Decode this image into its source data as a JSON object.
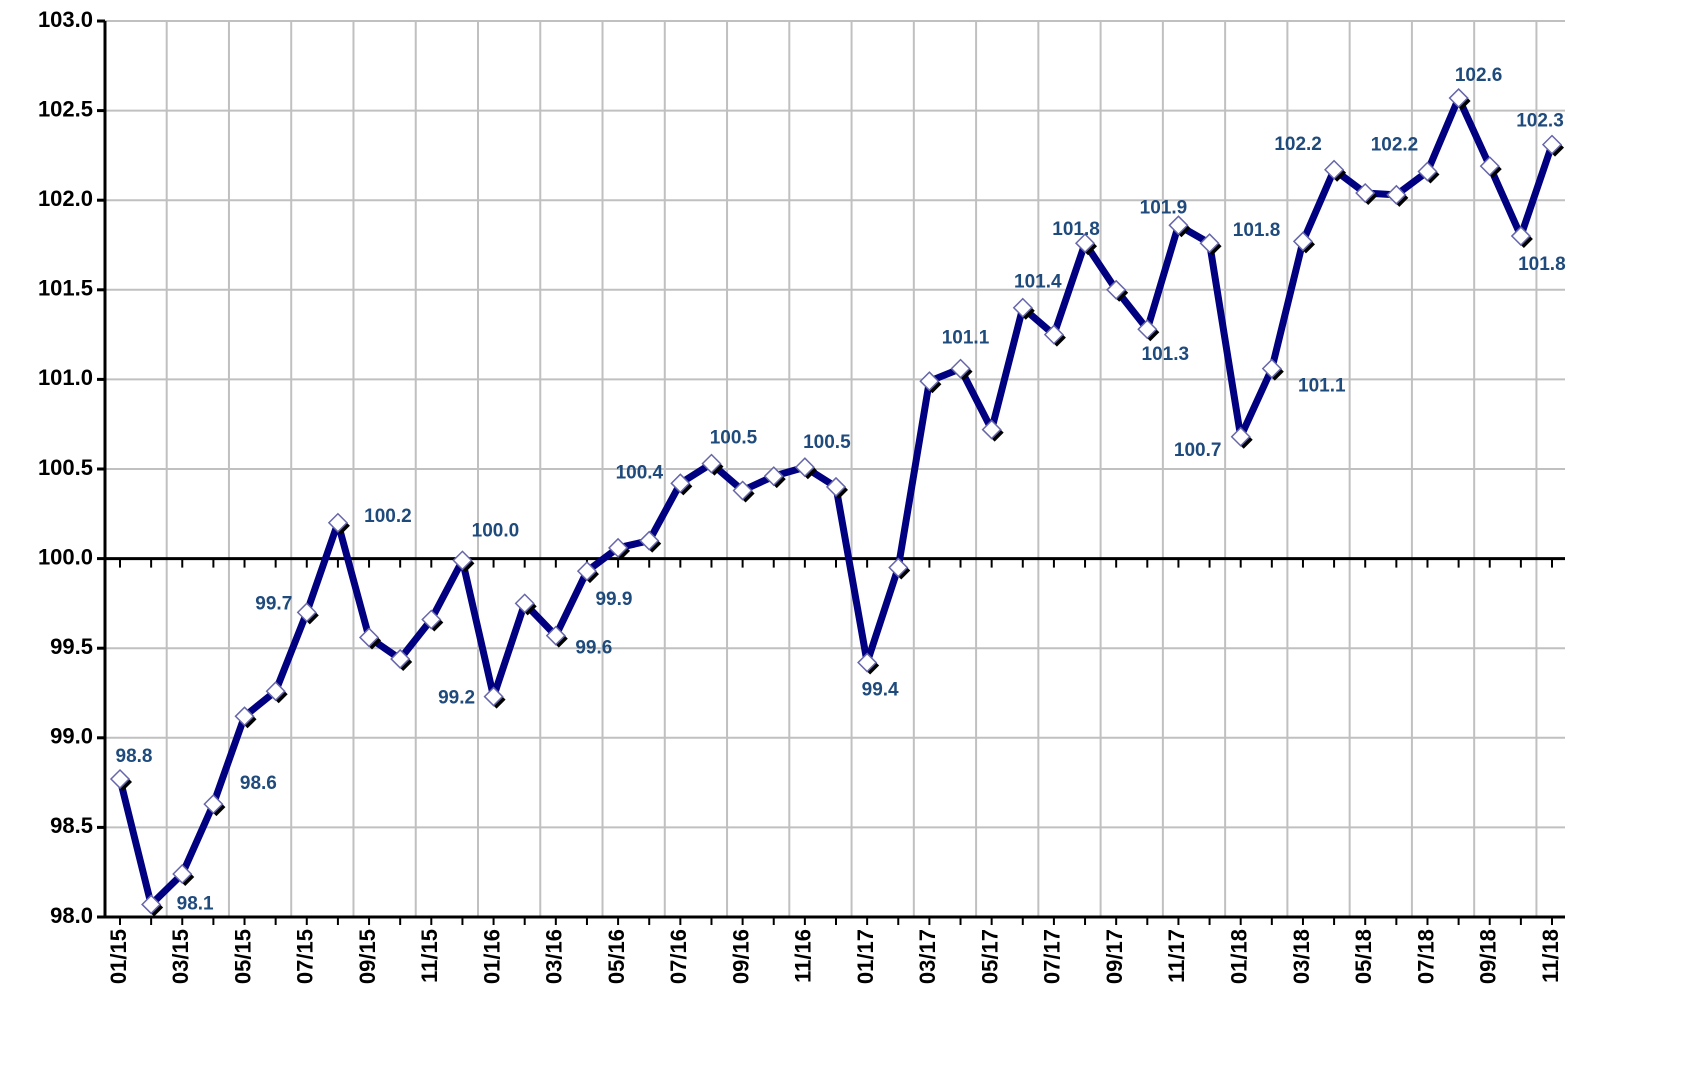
{
  "chart_data": {
    "type": "line",
    "categories": [
      "01/15",
      null,
      "03/15",
      null,
      "05/15",
      null,
      "07/15",
      null,
      "09/15",
      null,
      "11/15",
      null,
      "01/16",
      null,
      "03/16",
      null,
      "05/16",
      null,
      "07/16",
      null,
      "09/16",
      null,
      "11/16",
      null,
      "01/17",
      null,
      "03/17",
      null,
      "05/17",
      null,
      "07/17",
      null,
      "09/17",
      null,
      "11/17",
      null,
      "01/18",
      null,
      "03/18",
      null,
      "05/18",
      null,
      "07/18",
      null,
      "09/18",
      null,
      "11/18"
    ],
    "series": [
      {
        "color": "#000080",
        "values": [
          98.77,
          98.07,
          98.24,
          98.63,
          99.12,
          99.26,
          99.7,
          100.2,
          99.56,
          99.44,
          99.66,
          99.99,
          99.23,
          99.75,
          99.57,
          99.93,
          100.06,
          100.1,
          100.42,
          100.53,
          100.38,
          100.46,
          100.51,
          100.4,
          99.42,
          99.95,
          100.99,
          101.06,
          100.72,
          101.4,
          101.25,
          101.76,
          101.5,
          101.28,
          101.86,
          101.76,
          100.68,
          101.06,
          101.77,
          102.17,
          102.04,
          102.03,
          102.16,
          102.57,
          102.19,
          101.8,
          102.31
        ],
        "value_labels": [
          "98.8",
          "98.1",
          null,
          "98.6",
          null,
          null,
          "99.7",
          "100.2",
          null,
          null,
          null,
          "100.0",
          "99.2",
          null,
          "99.6",
          "99.9",
          null,
          null,
          "100.4",
          "100.5",
          null,
          null,
          "100.5",
          null,
          "99.4",
          null,
          null,
          "101.1",
          null,
          "101.4",
          null,
          "101.8",
          null,
          "101.3",
          "101.9",
          "101.8",
          "100.7",
          "101.1",
          null,
          "102.2",
          null,
          null,
          "102.2",
          "102.6",
          null,
          "101.8",
          "102.3"
        ]
      }
    ],
    "ylim": [
      98.0,
      103.0
    ],
    "yticks": [
      {
        "value": 98,
        "label": "98.0"
      },
      {
        "value": 98.5,
        "label": "98.5"
      },
      {
        "value": 99,
        "label": "99.0"
      },
      {
        "value": 99.5,
        "label": "99.5"
      },
      {
        "value": 100,
        "label": "100.0"
      },
      {
        "value": 100.5,
        "label": "100.5"
      },
      {
        "value": 101,
        "label": "101.0"
      },
      {
        "value": 101.5,
        "label": "101.5"
      },
      {
        "value": 102,
        "label": "102.0"
      },
      {
        "value": 102.5,
        "label": "102.5"
      },
      {
        "value": 103,
        "label": "103.0"
      }
    ],
    "baseline": 100,
    "grid": true
  }
}
